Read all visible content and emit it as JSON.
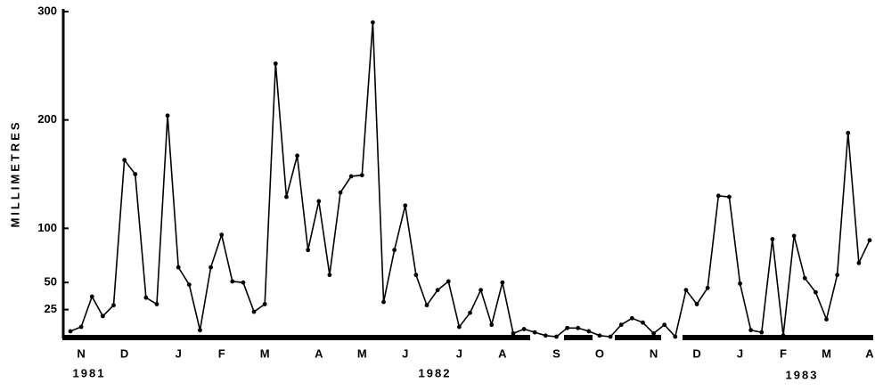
{
  "chart_data": {
    "type": "line",
    "y_label": "MILLIMETRES",
    "categories": [
      null,
      "N",
      null,
      null,
      null,
      "D",
      null,
      null,
      null,
      null,
      "J",
      null,
      null,
      null,
      "F",
      null,
      null,
      null,
      "M",
      null,
      null,
      null,
      null,
      "A",
      null,
      null,
      null,
      "M",
      null,
      null,
      null,
      "J",
      null,
      null,
      null,
      null,
      "J",
      null,
      null,
      null,
      "A",
      null,
      null,
      null,
      null,
      "S",
      null,
      null,
      null,
      "O",
      null,
      null,
      null,
      null,
      "N",
      null,
      null,
      null,
      "D",
      null,
      null,
      null,
      "J",
      null,
      null,
      null,
      "F",
      null,
      null,
      null,
      "M",
      null,
      null,
      null,
      "A"
    ],
    "values": [
      5,
      9,
      37,
      19,
      29,
      163,
      150,
      36,
      30,
      204,
      64,
      48,
      6,
      64,
      94,
      51,
      50,
      23,
      30,
      252,
      129,
      167,
      80,
      125,
      57,
      133,
      148,
      149,
      290,
      32,
      80,
      121,
      57,
      29,
      43,
      51,
      9,
      22,
      43,
      11,
      50,
      3,
      7,
      4,
      1,
      0,
      8,
      8,
      5,
      1,
      0,
      11,
      17,
      13,
      3,
      11,
      0,
      43,
      30,
      45,
      130,
      129,
      49,
      6,
      4,
      90,
      1,
      93,
      54,
      41,
      16,
      57,
      188,
      68,
      89
    ],
    "color": "#000000",
    "ylim": [
      0,
      300
    ],
    "yticks": [
      25,
      50,
      100,
      200,
      300
    ],
    "year_labels": [
      "1981",
      "1982",
      "1983"
    ]
  }
}
